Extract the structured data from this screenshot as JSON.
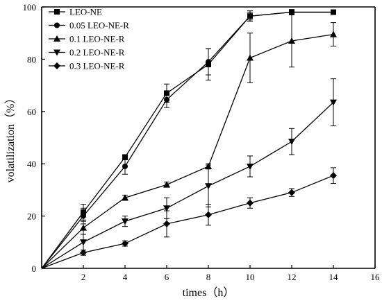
{
  "chart_data": {
    "type": "line",
    "xlabel": "times（h）",
    "ylabel": "volatilization（%）",
    "xlim": [
      0,
      16
    ],
    "ylim": [
      0,
      100
    ],
    "xticks": [
      2,
      4,
      6,
      8,
      10,
      12,
      14,
      16
    ],
    "yticks": [
      0,
      20,
      40,
      60,
      80,
      100
    ],
    "x": [
      0,
      2,
      4,
      6,
      8,
      10,
      12,
      14
    ],
    "legend_position": "top-left",
    "grid": false,
    "series": [
      {
        "name": "LEO-NE",
        "marker": "square",
        "values": [
          0,
          21.5,
          42.5,
          67,
          78,
          96.5,
          98,
          98
        ],
        "errors": [
          0,
          3,
          1,
          3.5,
          6,
          2,
          1,
          0.5
        ]
      },
      {
        "name": "0.05 LEO-NE-R",
        "marker": "circle",
        "values": [
          0,
          20,
          39,
          64.5,
          79,
          96.5,
          98,
          98
        ],
        "errors": [
          0,
          3,
          3,
          3,
          5,
          1.5,
          1,
          0.5
        ]
      },
      {
        "name": "0.1 LEO-NE-R",
        "marker": "triangle-up",
        "values": [
          0,
          15.5,
          27,
          32,
          39,
          80.5,
          87,
          89.5
        ],
        "errors": [
          0,
          2.5,
          1,
          1,
          1,
          9.5,
          10,
          4.5
        ]
      },
      {
        "name": "0.2 LEO-NE-R",
        "marker": "triangle-down",
        "values": [
          0,
          10,
          18,
          23,
          31.5,
          39,
          48.5,
          63.5
        ],
        "errors": [
          0,
          3,
          2,
          4,
          8,
          4,
          5,
          9
        ]
      },
      {
        "name": "0.3 LEO-NE-R",
        "marker": "diamond",
        "values": [
          0,
          6,
          9.5,
          17,
          20.5,
          25,
          29,
          35.5
        ],
        "errors": [
          0,
          1,
          1,
          5,
          4,
          2,
          1.5,
          3
        ]
      }
    ]
  }
}
